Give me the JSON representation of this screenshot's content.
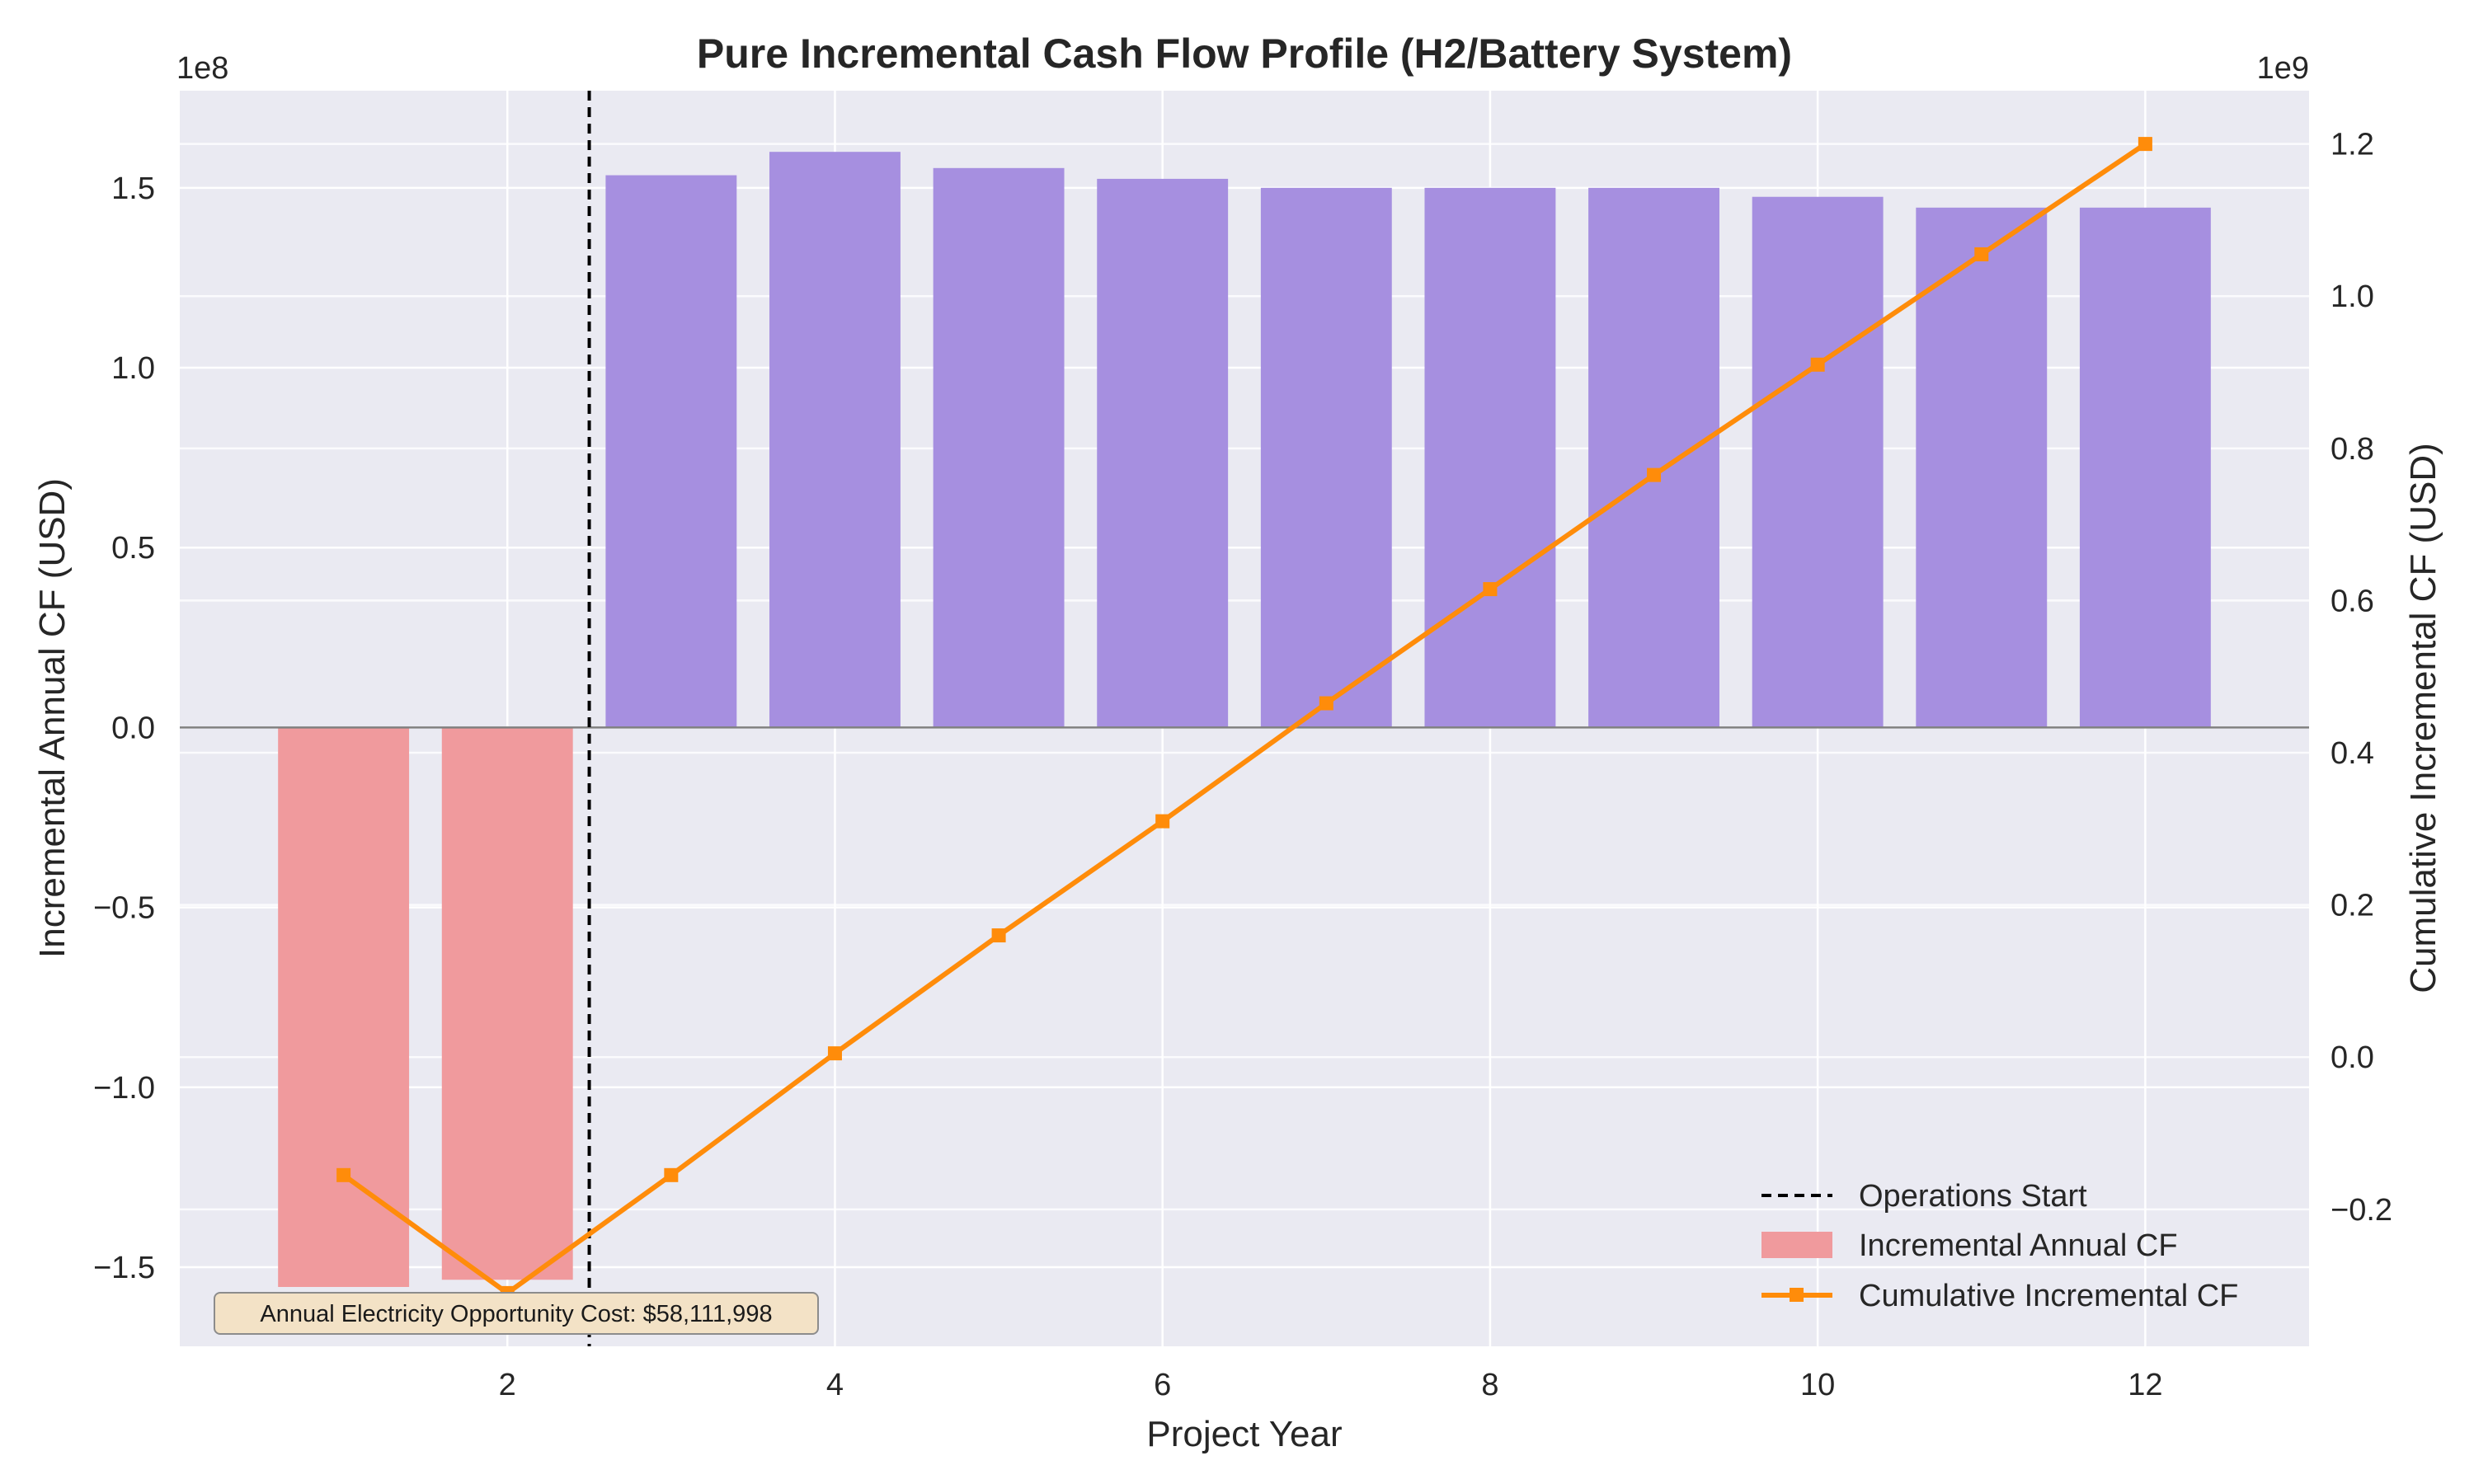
{
  "chart_data": {
    "type": "bar",
    "title": "Pure Incremental Cash Flow Profile (H2/Battery System)",
    "xlabel": "Project Year",
    "ylabel": "Incremental Annual CF (USD)",
    "y2label": "Cumulative Incremental CF (USD)",
    "x": [
      1,
      2,
      3,
      4,
      5,
      6,
      7,
      8,
      9,
      10,
      11,
      12
    ],
    "xticks": [
      2,
      4,
      6,
      8,
      10,
      12
    ],
    "xtick_labels": [
      "2",
      "4",
      "6",
      "8",
      "10",
      "12"
    ],
    "xlim": [
      0,
      13
    ],
    "ylim": [
      -1.72,
      1.77
    ],
    "y2lim": [
      -0.38,
      1.27
    ],
    "yticks": [
      -1.5,
      -1.0,
      -0.5,
      0.0,
      0.5,
      1.0,
      1.5
    ],
    "ytick_labels": [
      "−1.5",
      "−1.0",
      "−0.5",
      "0.0",
      "0.5",
      "1.0",
      "1.5"
    ],
    "y2ticks": [
      -0.2,
      0.0,
      0.2,
      0.4,
      0.6,
      0.8,
      1.0,
      1.2
    ],
    "y2tick_labels": [
      "−0.2",
      "0.0",
      "0.2",
      "0.4",
      "0.6",
      "0.8",
      "1.0",
      "1.2"
    ],
    "y_multiplier": "1e8",
    "y2_multiplier": "1e9",
    "grid": true,
    "legend_position": "lower-right",
    "operations_start_x": 2.5,
    "series": [
      {
        "name": "Incremental Annual CF",
        "kind": "bar",
        "axis": "left",
        "units": "1e8 USD",
        "values": [
          -1.555,
          -1.535,
          1.535,
          1.6,
          1.555,
          1.525,
          1.5,
          1.5,
          1.5,
          1.475,
          1.445,
          1.445
        ],
        "colors": [
          "#f09a9d",
          "#f09a9d",
          "#a68fe0",
          "#a68fe0",
          "#a68fe0",
          "#a68fe0",
          "#a68fe0",
          "#a68fe0",
          "#a68fe0",
          "#a68fe0",
          "#a68fe0",
          "#a68fe0"
        ]
      },
      {
        "name": "Cumulative Incremental CF",
        "kind": "line",
        "axis": "right",
        "units": "1e9 USD",
        "values": [
          -0.155,
          -0.31,
          -0.155,
          0.005,
          0.16,
          0.31,
          0.465,
          0.615,
          0.765,
          0.91,
          1.055,
          1.2
        ],
        "color": "#ff8c0a"
      }
    ],
    "legend": [
      {
        "label": "Operations Start",
        "style": "dashed-line"
      },
      {
        "label": "Incremental Annual CF",
        "style": "patch"
      },
      {
        "label": "Cumulative Incremental CF",
        "style": "line-marker"
      }
    ],
    "annotation": "Annual Electricity Opportunity Cost: $58,111,998"
  }
}
